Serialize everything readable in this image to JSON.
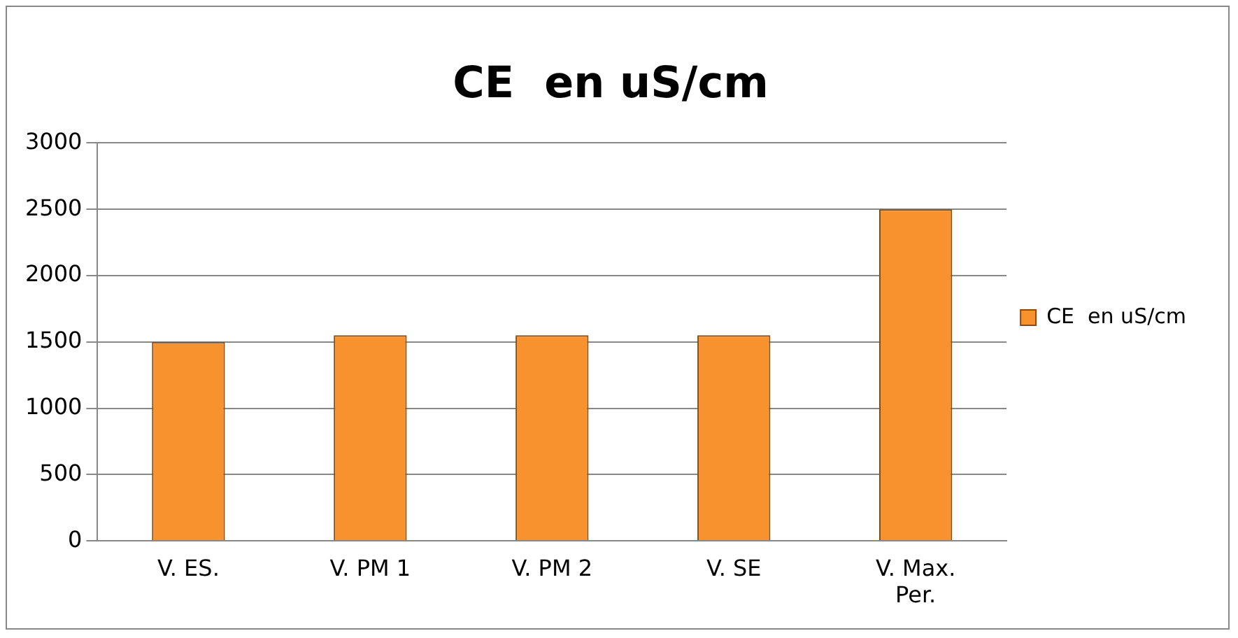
{
  "chart_data": {
    "type": "bar",
    "title": "CE  en uS/cm",
    "categories": [
      "V. ES.",
      "V. PM 1",
      "V. PM 2",
      "V. SE",
      "V. Max. Per."
    ],
    "series": [
      {
        "name": "CE  en uS/cm",
        "color": "#f7922e",
        "values": [
          1500,
          1550,
          1550,
          1550,
          2500
        ]
      }
    ],
    "ylim": [
      0,
      3000
    ],
    "yticks": [
      0,
      500,
      1000,
      1500,
      2000,
      2500,
      3000
    ],
    "grid": "y",
    "legend": "right"
  }
}
